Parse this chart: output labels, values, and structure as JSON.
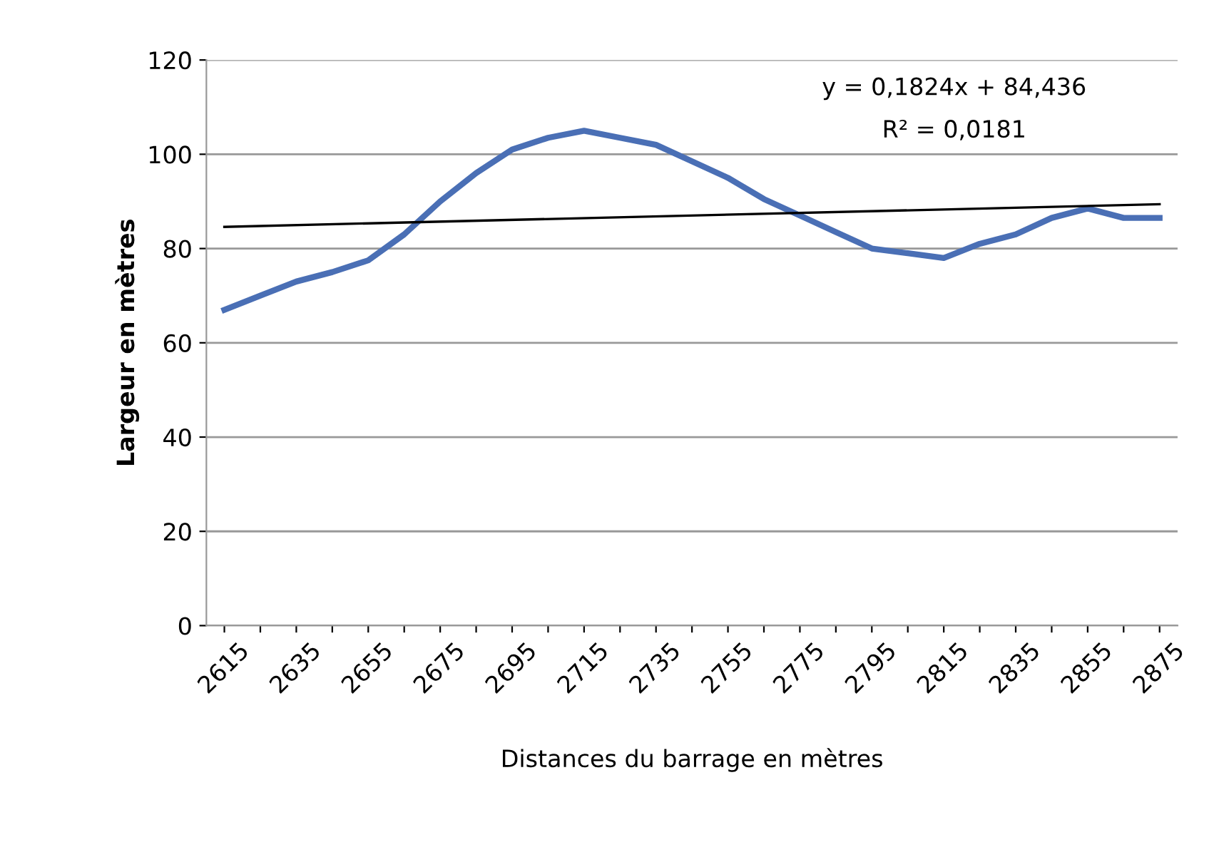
{
  "chart_data": {
    "type": "line",
    "xlabel": "Distances du barrage en mètres",
    "ylabel": "Largeur en mètres",
    "x": [
      2615,
      2625,
      2635,
      2645,
      2655,
      2665,
      2675,
      2685,
      2695,
      2705,
      2715,
      2725,
      2735,
      2745,
      2755,
      2765,
      2775,
      2785,
      2795,
      2805,
      2815,
      2825,
      2835,
      2845,
      2855,
      2865,
      2875
    ],
    "series": [
      {
        "color": "#4a6fb5",
        "values": [
          67,
          70,
          73,
          75,
          77.5,
          83,
          90,
          96,
          101,
          103.5,
          105,
          103.5,
          102,
          98.5,
          95,
          90.5,
          87,
          83.5,
          80,
          79,
          78,
          81,
          83,
          86.5,
          88.5,
          86.5,
          86.5
        ]
      },
      {
        "type": "line",
        "color": "#000000",
        "x": [
          2615,
          2875
        ],
        "values": [
          84.6,
          89.4
        ]
      }
    ],
    "annotations": [
      "y = 0,1824x + 84,436",
      "R² = 0,0181"
    ],
    "xlim": [
      2610,
      2880
    ],
    "xticks": [
      2615,
      {
        "value": 2625,
        "label": null
      },
      2635,
      {
        "value": 2645,
        "label": null
      },
      2655,
      {
        "value": 2665,
        "label": null
      },
      2675,
      {
        "value": 2685,
        "label": null
      },
      2695,
      {
        "value": 2705,
        "label": null
      },
      2715,
      {
        "value": 2725,
        "label": null
      },
      2735,
      {
        "value": 2745,
        "label": null
      },
      2755,
      {
        "value": 2765,
        "label": null
      },
      2775,
      {
        "value": 2785,
        "label": null
      },
      2795,
      {
        "value": 2805,
        "label": null
      },
      2815,
      {
        "value": 2825,
        "label": null
      },
      2835,
      {
        "value": 2845,
        "label": null
      },
      2855,
      {
        "value": 2865,
        "label": null
      },
      2875
    ],
    "ylim": [
      0,
      120
    ],
    "yticks": [
      0,
      20,
      40,
      60,
      80,
      100,
      120
    ],
    "grid": "y",
    "legend": false,
    "marker": "none",
    "line_style": "solid"
  }
}
